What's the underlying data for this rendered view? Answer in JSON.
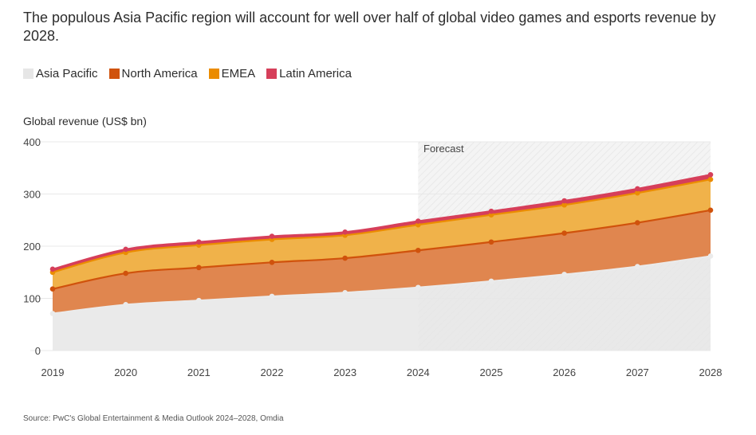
{
  "title": "The populous Asia Pacific region will account for well over half of global video games and esports revenue by 2028.",
  "source": "Source: PwC's Global Entertainment & Media Outlook 2024–2028, Omdia",
  "colors": {
    "asia_pacific": "#e6e6e6",
    "north_america": "#d0520c",
    "emea": "#eb8c00",
    "latin_america": "#d63f5a",
    "north_america_fill": "#e0864f",
    "emea_fill": "#f0b24a",
    "grid": "#e8e8e8",
    "forecast_band": "#f3f3f3"
  },
  "chart_data": {
    "type": "area",
    "stacked": true,
    "ylabel": "Global revenue (US$ bn)",
    "xlabel": "",
    "ylim": [
      0,
      400
    ],
    "yticks": [
      "0",
      "100",
      "200",
      "300",
      "400"
    ],
    "categories": [
      "2019",
      "2020",
      "2021",
      "2022",
      "2023",
      "2024",
      "2025",
      "2026",
      "2027",
      "2028"
    ],
    "forecast_label": "Forecast",
    "forecast_start": "2024",
    "legend_position": "top-left",
    "grid": true,
    "series": [
      {
        "name": "Asia Pacific",
        "color": "#e6e6e6",
        "values": [
          71,
          88,
          96,
          104,
          111,
          121,
          133,
          146,
          161,
          181
        ]
      },
      {
        "name": "North America",
        "color": "#d0520c",
        "values": [
          47,
          60,
          63,
          65,
          66,
          71,
          75,
          79,
          84,
          88
        ]
      },
      {
        "name": "EMEA",
        "color": "#eb8c00",
        "values": [
          32,
          40,
          43,
          44,
          44,
          49,
          52,
          54,
          57,
          59
        ]
      },
      {
        "name": "Latin America",
        "color": "#d63f5a",
        "values": [
          6,
          6,
          6,
          6,
          6,
          7,
          7,
          8,
          8,
          9
        ]
      }
    ],
    "totals": [
      156,
      194,
      208,
      219,
      227,
      248,
      267,
      287,
      310,
      337
    ]
  }
}
